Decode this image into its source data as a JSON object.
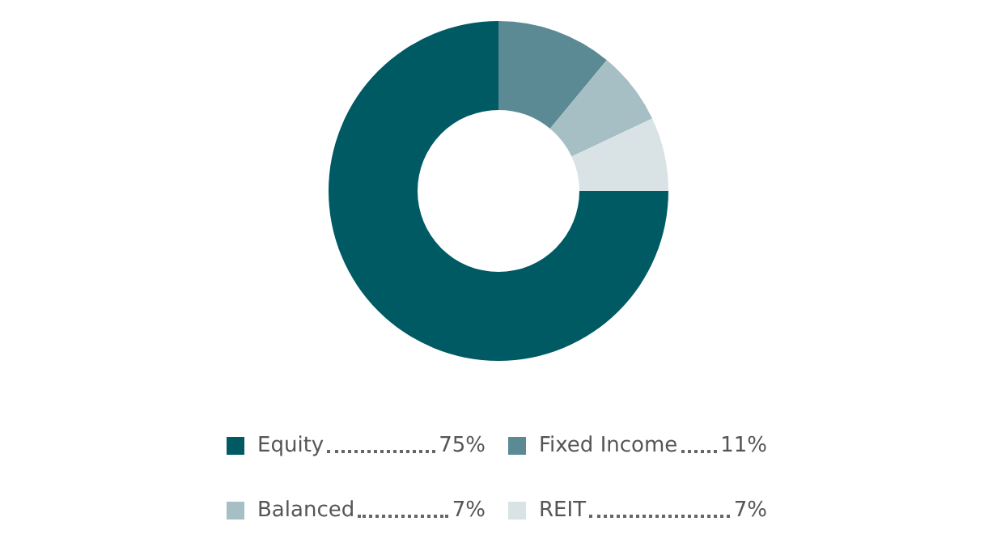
{
  "chart_data": {
    "type": "donut",
    "categories": [
      "Equity",
      "Fixed Income",
      "Balanced",
      "REIT"
    ],
    "values": [
      75,
      11,
      7,
      7
    ],
    "colors": [
      "#005a64",
      "#5b8a94",
      "#a5bfc5",
      "#d9e2e4"
    ],
    "value_labels": [
      "75%",
      "11%",
      "7%",
      "7%"
    ],
    "legend": "bottom"
  }
}
